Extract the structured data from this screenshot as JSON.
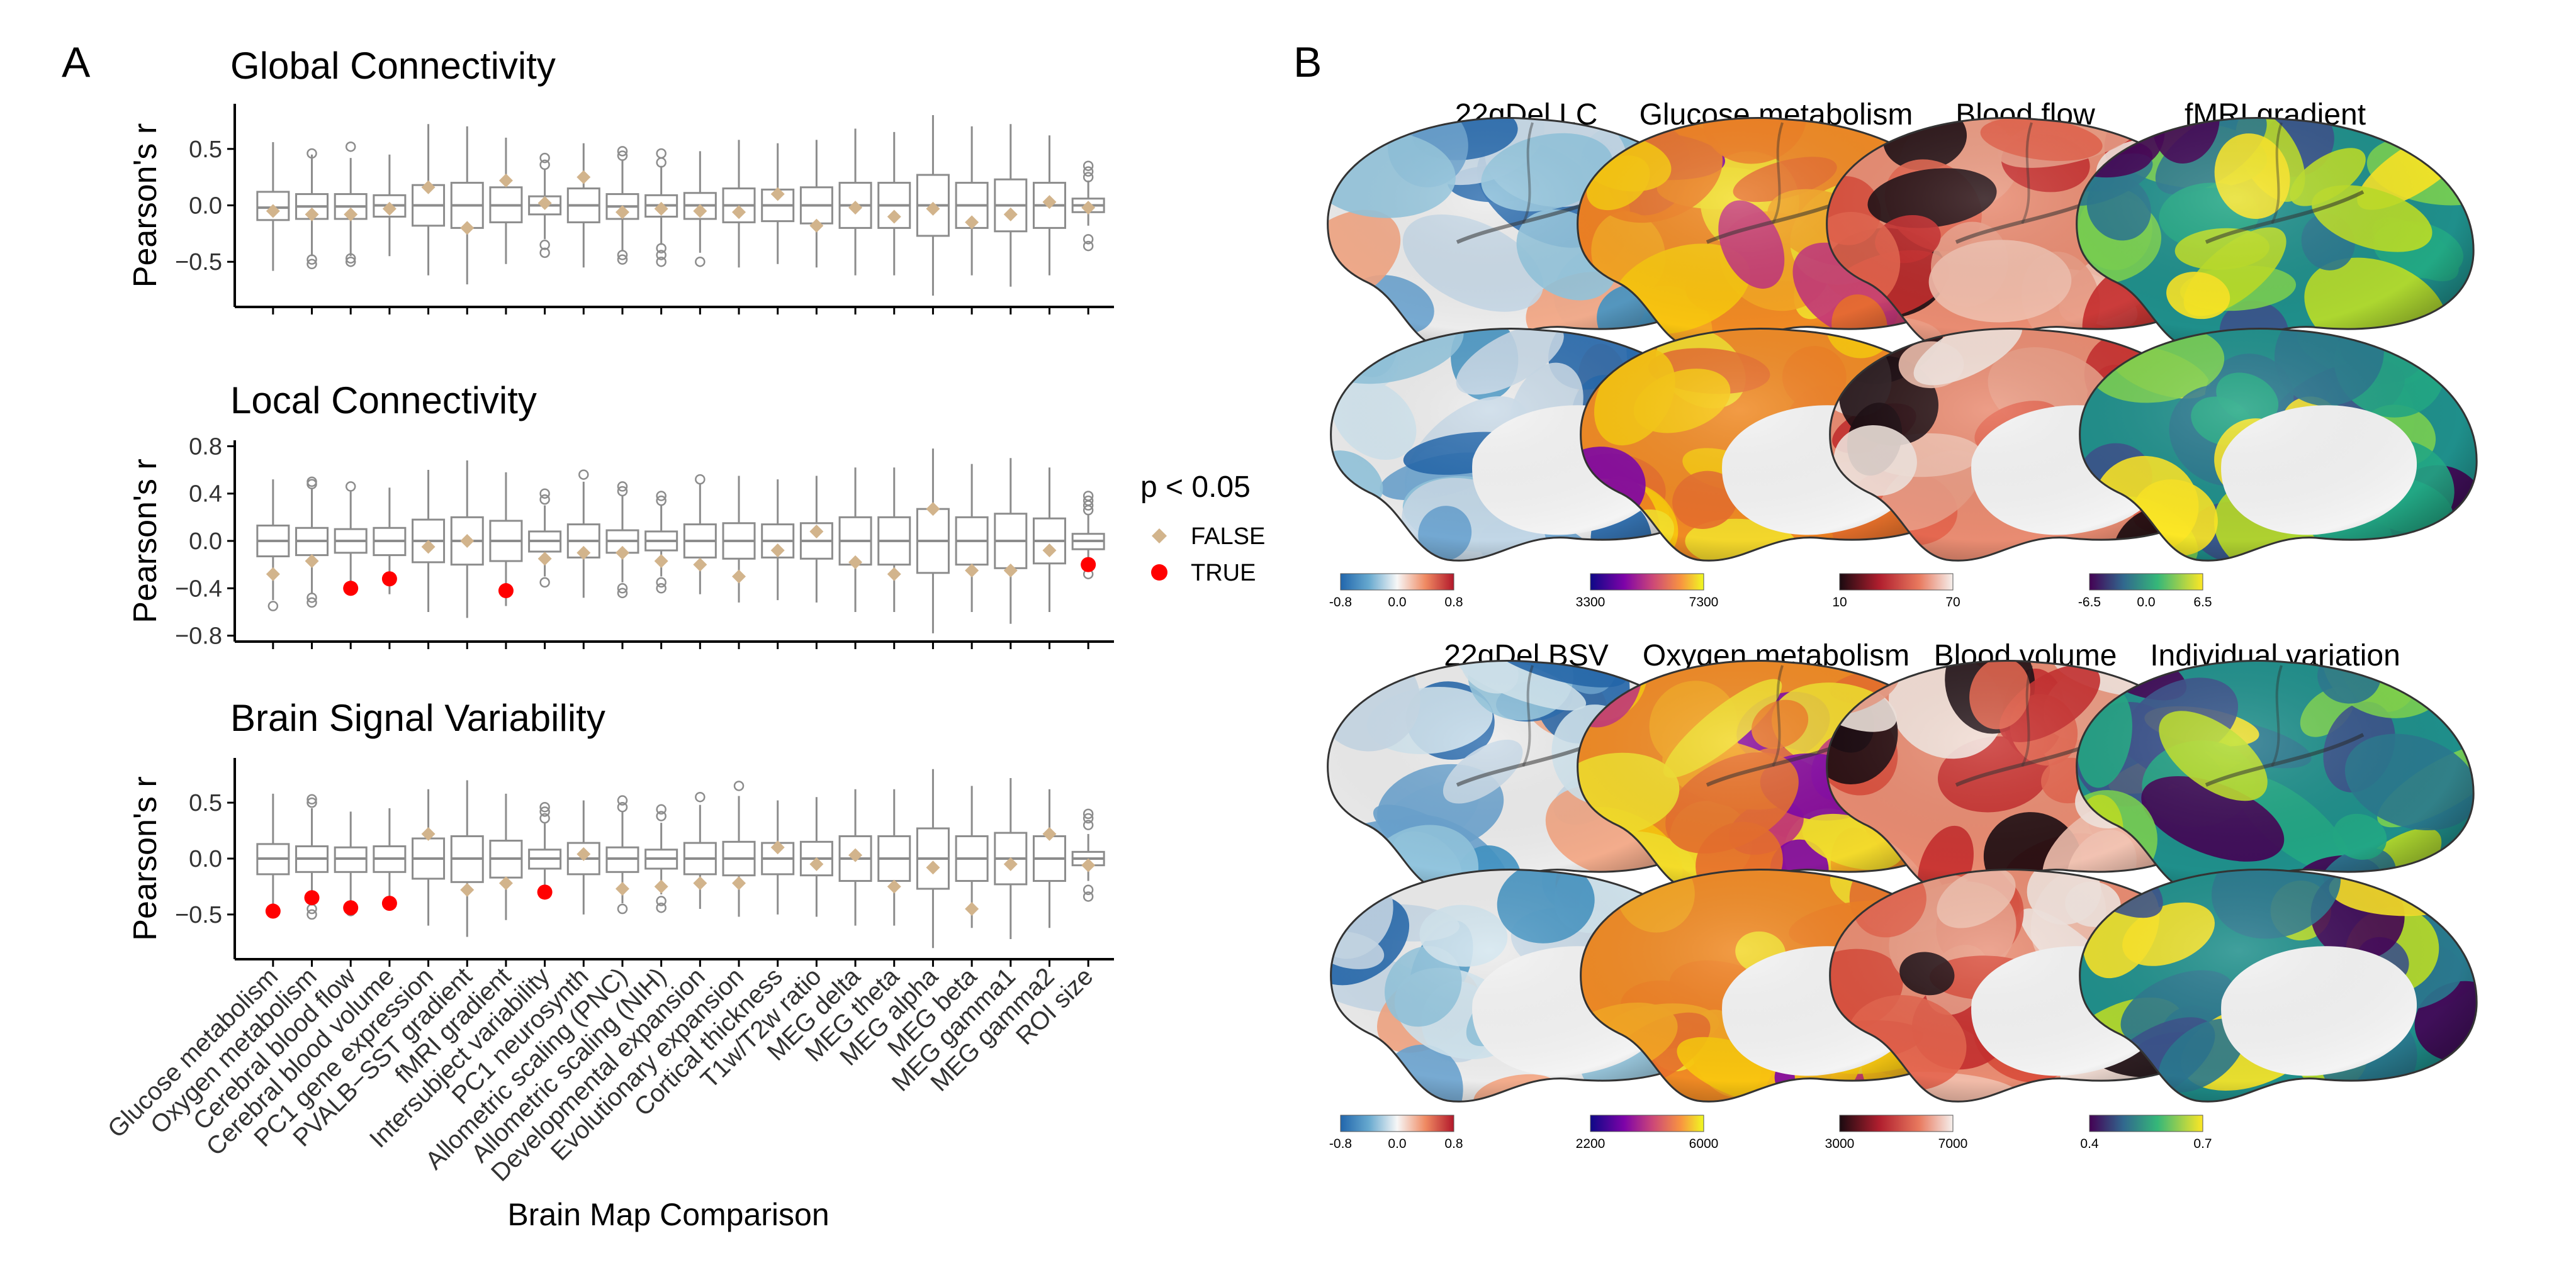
{
  "panels": {
    "a": "A",
    "b": "B"
  },
  "chart_data": [
    {
      "type": "box",
      "title": "Global Connectivity",
      "ylabel": "Pearson's r",
      "xlabel": "",
      "ylim": [
        -0.9,
        0.9
      ],
      "yticks": [
        -0.5,
        0.0,
        0.5
      ],
      "ytick_labels": [
        "−0.5",
        "0.0",
        "0.5"
      ],
      "series": [
        {
          "box": [
            -0.58,
            -0.13,
            -0.02,
            0.12,
            0.56
          ],
          "out": [],
          "obs": -0.05,
          "sig": false
        },
        {
          "box": [
            -0.45,
            -0.12,
            -0.01,
            0.1,
            0.45
          ],
          "out": [
            -0.48,
            -0.52,
            0.46
          ],
          "obs": -0.08,
          "sig": false
        },
        {
          "box": [
            -0.45,
            -0.12,
            -0.01,
            0.1,
            0.42
          ],
          "out": [
            -0.47,
            -0.5,
            0.52
          ],
          "obs": -0.08,
          "sig": false
        },
        {
          "box": [
            -0.45,
            -0.1,
            0.0,
            0.09,
            0.45
          ],
          "out": [],
          "obs": -0.03,
          "sig": false
        },
        {
          "box": [
            -0.62,
            -0.18,
            0.0,
            0.18,
            0.72
          ],
          "out": [],
          "obs": 0.16,
          "sig": false
        },
        {
          "box": [
            -0.7,
            -0.2,
            0.0,
            0.2,
            0.7
          ],
          "out": [],
          "obs": -0.2,
          "sig": false
        },
        {
          "box": [
            -0.52,
            -0.15,
            0.0,
            0.16,
            0.6
          ],
          "out": [],
          "obs": 0.22,
          "sig": false
        },
        {
          "box": [
            -0.3,
            -0.08,
            0.0,
            0.08,
            0.32
          ],
          "out": [
            -0.35,
            -0.42,
            0.36,
            0.42
          ],
          "obs": 0.02,
          "sig": false
        },
        {
          "box": [
            -0.55,
            -0.15,
            0.0,
            0.15,
            0.55
          ],
          "out": [],
          "obs": 0.25,
          "sig": false
        },
        {
          "box": [
            -0.4,
            -0.12,
            -0.01,
            0.1,
            0.4
          ],
          "out": [
            -0.44,
            -0.48,
            0.44,
            0.48
          ],
          "obs": -0.06,
          "sig": false
        },
        {
          "box": [
            -0.35,
            -0.1,
            0.0,
            0.09,
            0.35
          ],
          "out": [
            -0.38,
            -0.44,
            -0.5,
            0.38,
            0.46
          ],
          "obs": -0.03,
          "sig": false
        },
        {
          "box": [
            -0.42,
            -0.12,
            0.0,
            0.11,
            0.48
          ],
          "out": [
            -0.5
          ],
          "obs": -0.05,
          "sig": false
        },
        {
          "box": [
            -0.55,
            -0.15,
            0.0,
            0.15,
            0.58
          ],
          "out": [],
          "obs": -0.06,
          "sig": false
        },
        {
          "box": [
            -0.52,
            -0.14,
            0.0,
            0.14,
            0.55
          ],
          "out": [],
          "obs": 0.1,
          "sig": false
        },
        {
          "box": [
            -0.55,
            -0.16,
            0.0,
            0.16,
            0.58
          ],
          "out": [],
          "obs": -0.18,
          "sig": false
        },
        {
          "box": [
            -0.62,
            -0.2,
            0.0,
            0.2,
            0.68
          ],
          "out": [],
          "obs": -0.02,
          "sig": false
        },
        {
          "box": [
            -0.62,
            -0.2,
            0.0,
            0.2,
            0.65
          ],
          "out": [],
          "obs": -0.1,
          "sig": false
        },
        {
          "box": [
            -0.8,
            -0.27,
            0.0,
            0.27,
            0.8
          ],
          "out": [],
          "obs": -0.03,
          "sig": false
        },
        {
          "box": [
            -0.62,
            -0.2,
            0.0,
            0.2,
            0.7
          ],
          "out": [],
          "obs": -0.15,
          "sig": false
        },
        {
          "box": [
            -0.72,
            -0.23,
            0.0,
            0.23,
            0.72
          ],
          "out": [],
          "obs": -0.08,
          "sig": false
        },
        {
          "box": [
            -0.62,
            -0.2,
            0.0,
            0.2,
            0.62
          ],
          "out": [],
          "obs": 0.03,
          "sig": false
        },
        {
          "box": [
            -0.18,
            -0.06,
            0.0,
            0.06,
            0.22
          ],
          "out": [
            -0.3,
            -0.36,
            0.25,
            0.3,
            0.35
          ],
          "obs": -0.02,
          "sig": false
        }
      ]
    },
    {
      "type": "box",
      "title": "Local Connectivity",
      "ylabel": "Pearson's r",
      "xlabel": "",
      "ylim": [
        -0.85,
        0.85
      ],
      "yticks": [
        -0.8,
        -0.4,
        0.0,
        0.4,
        0.8
      ],
      "ytick_labels": [
        "−0.8",
        "−0.4",
        "0.0",
        "0.4",
        "0.8"
      ],
      "series": [
        {
          "box": [
            -0.5,
            -0.13,
            0.0,
            0.13,
            0.52
          ],
          "out": [
            -0.55
          ],
          "obs": -0.28,
          "sig": false
        },
        {
          "box": [
            -0.45,
            -0.12,
            0.0,
            0.11,
            0.45
          ],
          "out": [
            -0.48,
            -0.52,
            0.48,
            0.5
          ],
          "obs": -0.17,
          "sig": false
        },
        {
          "box": [
            -0.4,
            -0.1,
            0.0,
            0.1,
            0.42
          ],
          "out": [
            -0.42,
            0.46
          ],
          "obs": -0.4,
          "sig": true
        },
        {
          "box": [
            -0.45,
            -0.12,
            0.0,
            0.11,
            0.45
          ],
          "out": [],
          "obs": -0.32,
          "sig": true
        },
        {
          "box": [
            -0.6,
            -0.18,
            0.0,
            0.18,
            0.6
          ],
          "out": [],
          "obs": -0.05,
          "sig": false
        },
        {
          "box": [
            -0.65,
            -0.2,
            0.0,
            0.2,
            0.68
          ],
          "out": [],
          "obs": 0.0,
          "sig": false
        },
        {
          "box": [
            -0.55,
            -0.17,
            0.0,
            0.17,
            0.58
          ],
          "out": [],
          "obs": -0.42,
          "sig": true
        },
        {
          "box": [
            -0.3,
            -0.09,
            0.0,
            0.08,
            0.3
          ],
          "out": [
            -0.35,
            0.35,
            0.4
          ],
          "obs": -0.15,
          "sig": false
        },
        {
          "box": [
            -0.48,
            -0.14,
            0.0,
            0.14,
            0.5
          ],
          "out": [
            0.56
          ],
          "obs": -0.1,
          "sig": false
        },
        {
          "box": [
            -0.35,
            -0.1,
            0.0,
            0.09,
            0.38
          ],
          "out": [
            -0.4,
            -0.44,
            0.42,
            0.46
          ],
          "obs": -0.1,
          "sig": false
        },
        {
          "box": [
            -0.3,
            -0.08,
            0.0,
            0.08,
            0.3
          ],
          "out": [
            -0.35,
            -0.4,
            0.34,
            0.38
          ],
          "obs": -0.17,
          "sig": false
        },
        {
          "box": [
            -0.45,
            -0.14,
            0.0,
            0.14,
            0.48
          ],
          "out": [
            0.52
          ],
          "obs": -0.2,
          "sig": false
        },
        {
          "box": [
            -0.52,
            -0.15,
            0.0,
            0.15,
            0.55
          ],
          "out": [],
          "obs": -0.3,
          "sig": false
        },
        {
          "box": [
            -0.5,
            -0.14,
            0.0,
            0.14,
            0.52
          ],
          "out": [],
          "obs": -0.08,
          "sig": false
        },
        {
          "box": [
            -0.52,
            -0.15,
            0.0,
            0.15,
            0.55
          ],
          "out": [],
          "obs": 0.08,
          "sig": false
        },
        {
          "box": [
            -0.6,
            -0.2,
            0.0,
            0.2,
            0.62
          ],
          "out": [],
          "obs": -0.18,
          "sig": false
        },
        {
          "box": [
            -0.6,
            -0.2,
            0.0,
            0.2,
            0.62
          ],
          "out": [],
          "obs": -0.28,
          "sig": false
        },
        {
          "box": [
            -0.78,
            -0.27,
            0.0,
            0.27,
            0.78
          ],
          "out": [],
          "obs": 0.27,
          "sig": false
        },
        {
          "box": [
            -0.6,
            -0.2,
            0.0,
            0.2,
            0.65
          ],
          "out": [],
          "obs": -0.25,
          "sig": false
        },
        {
          "box": [
            -0.7,
            -0.23,
            0.0,
            0.23,
            0.7
          ],
          "out": [],
          "obs": -0.25,
          "sig": false
        },
        {
          "box": [
            -0.6,
            -0.19,
            0.0,
            0.19,
            0.62
          ],
          "out": [],
          "obs": -0.08,
          "sig": false
        },
        {
          "box": [
            -0.2,
            -0.07,
            0.0,
            0.06,
            0.22
          ],
          "out": [
            -0.28,
            0.26,
            0.3,
            0.34,
            0.38
          ],
          "obs": -0.2,
          "sig": true
        }
      ]
    },
    {
      "type": "box",
      "title": "Brain Signal Variability",
      "ylabel": "Pearson's r",
      "xlabel": "Brain Map Comparison",
      "ylim": [
        -0.9,
        0.9
      ],
      "yticks": [
        -0.5,
        0.0,
        0.5
      ],
      "ytick_labels": [
        "−0.5",
        "0.0",
        "0.5"
      ],
      "categories": [
        "Glucose metabolism",
        "Oxygen metabolism",
        "Cerebral blood flow",
        "Cerebral blood volume",
        "PC1 gene expression",
        "PVALB−SST gradient",
        "fMRI gradient",
        "Intersubject variability",
        "PC1 neurosynth",
        "Allometric scaling (PNC)",
        "Allometric scaling (NIH)",
        "Developmental expansion",
        "Evolutionary expansion",
        "Cortical thickness",
        "T1w/T2w ratio",
        "MEG delta",
        "MEG theta",
        "MEG alpha",
        "MEG beta",
        "MEG gamma1",
        "MEG gamma2",
        "ROI size"
      ],
      "series": [
        {
          "box": [
            -0.52,
            -0.14,
            0.0,
            0.13,
            0.58
          ],
          "out": [],
          "obs": -0.47,
          "sig": true
        },
        {
          "box": [
            -0.42,
            -0.12,
            0.0,
            0.11,
            0.45
          ],
          "out": [
            -0.45,
            -0.5,
            0.5,
            0.53
          ],
          "obs": -0.35,
          "sig": true
        },
        {
          "box": [
            -0.4,
            -0.12,
            0.0,
            0.1,
            0.42
          ],
          "out": [
            -0.47
          ],
          "obs": -0.44,
          "sig": true
        },
        {
          "box": [
            -0.42,
            -0.12,
            0.0,
            0.11,
            0.45
          ],
          "out": [],
          "obs": -0.4,
          "sig": true
        },
        {
          "box": [
            -0.6,
            -0.18,
            0.0,
            0.18,
            0.62
          ],
          "out": [],
          "obs": 0.22,
          "sig": false
        },
        {
          "box": [
            -0.7,
            -0.21,
            0.0,
            0.2,
            0.7
          ],
          "out": [],
          "obs": -0.28,
          "sig": false
        },
        {
          "box": [
            -0.55,
            -0.17,
            0.0,
            0.16,
            0.58
          ],
          "out": [],
          "obs": -0.22,
          "sig": false
        },
        {
          "box": [
            -0.3,
            -0.09,
            0.0,
            0.08,
            0.32
          ],
          "out": [
            0.36,
            0.42,
            0.46
          ],
          "obs": -0.3,
          "sig": true
        },
        {
          "box": [
            -0.5,
            -0.14,
            0.0,
            0.14,
            0.52
          ],
          "out": [],
          "obs": 0.04,
          "sig": false
        },
        {
          "box": [
            -0.4,
            -0.12,
            0.0,
            0.1,
            0.42
          ],
          "out": [
            -0.45,
            0.46,
            0.52
          ],
          "obs": -0.27,
          "sig": false
        },
        {
          "box": [
            -0.32,
            -0.09,
            0.0,
            0.08,
            0.32
          ],
          "out": [
            -0.38,
            -0.44,
            0.38,
            0.44
          ],
          "obs": -0.25,
          "sig": false
        },
        {
          "box": [
            -0.45,
            -0.14,
            0.0,
            0.14,
            0.48
          ],
          "out": [
            0.55
          ],
          "obs": -0.22,
          "sig": false
        },
        {
          "box": [
            -0.52,
            -0.15,
            0.0,
            0.15,
            0.56
          ],
          "out": [
            0.65
          ],
          "obs": -0.22,
          "sig": false
        },
        {
          "box": [
            -0.5,
            -0.14,
            0.0,
            0.14,
            0.52
          ],
          "out": [],
          "obs": 0.1,
          "sig": false
        },
        {
          "box": [
            -0.52,
            -0.15,
            0.0,
            0.15,
            0.55
          ],
          "out": [],
          "obs": -0.05,
          "sig": false
        },
        {
          "box": [
            -0.6,
            -0.2,
            0.0,
            0.2,
            0.62
          ],
          "out": [],
          "obs": 0.03,
          "sig": false
        },
        {
          "box": [
            -0.6,
            -0.2,
            0.0,
            0.2,
            0.62
          ],
          "out": [],
          "obs": -0.25,
          "sig": false
        },
        {
          "box": [
            -0.8,
            -0.27,
            0.0,
            0.27,
            0.8
          ],
          "out": [],
          "obs": -0.08,
          "sig": false
        },
        {
          "box": [
            -0.62,
            -0.2,
            0.0,
            0.2,
            0.65
          ],
          "out": [],
          "obs": -0.45,
          "sig": false
        },
        {
          "box": [
            -0.72,
            -0.23,
            0.0,
            0.23,
            0.72
          ],
          "out": [],
          "obs": -0.05,
          "sig": false
        },
        {
          "box": [
            -0.62,
            -0.2,
            0.0,
            0.2,
            0.62
          ],
          "out": [],
          "obs": 0.22,
          "sig": false
        },
        {
          "box": [
            -0.2,
            -0.06,
            0.0,
            0.06,
            0.22
          ],
          "out": [
            -0.28,
            -0.34,
            0.3,
            0.36,
            0.4
          ],
          "obs": -0.06,
          "sig": false
        }
      ]
    }
  ],
  "legend": {
    "title": "p < 0.05",
    "items": [
      {
        "label": "FALSE",
        "color": "#D2B48C",
        "shape": "diamond"
      },
      {
        "label": "TRUE",
        "color": "#FF0000",
        "shape": "circle"
      }
    ]
  },
  "brain_maps": [
    {
      "title": "22qDel LC",
      "cmap": "rdbu",
      "cb_labels": [
        "-0.8",
        "0.0",
        "0.8"
      ]
    },
    {
      "title": "Glucose metabolism",
      "cmap": "plasma",
      "cb_labels": [
        "3300",
        "7300"
      ]
    },
    {
      "title": "Blood flow",
      "cmap": "reds",
      "cb_labels": [
        "10",
        "70"
      ]
    },
    {
      "title": "fMRI gradient",
      "cmap": "viridis",
      "cb_labels": [
        "-6.5",
        "0.0",
        "6.5"
      ]
    },
    {
      "title": "22qDel BSV",
      "cmap": "rdbu",
      "cb_labels": [
        "-0.8",
        "0.0",
        "0.8"
      ]
    },
    {
      "title": "Oxygen metabolism",
      "cmap": "plasma",
      "cb_labels": [
        "2200",
        "6000"
      ]
    },
    {
      "title": "Blood volume",
      "cmap": "reds",
      "cb_labels": [
        "3000",
        "7000"
      ]
    },
    {
      "title": "Individual variation",
      "cmap": "viridis",
      "cb_labels": [
        "0.4",
        "0.7"
      ]
    }
  ],
  "colors": {
    "box_stroke": "#8C8C8C",
    "false_marker": "#D2B48C",
    "true_marker": "#FF0000"
  }
}
